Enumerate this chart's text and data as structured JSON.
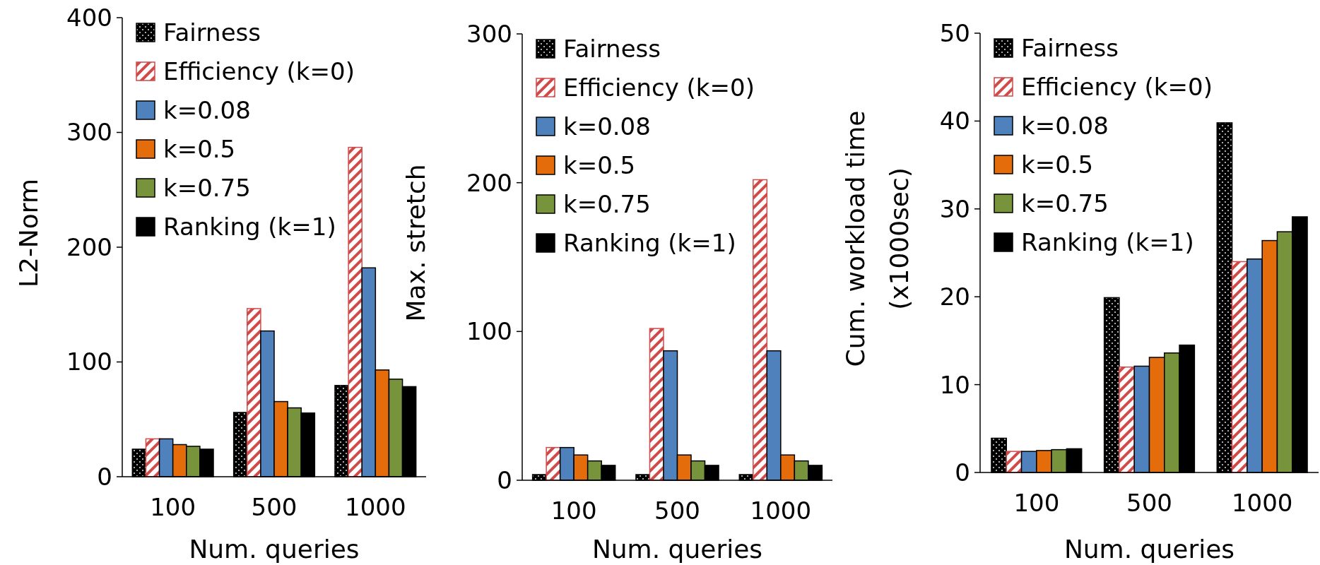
{
  "chart_data": [
    {
      "type": "bar",
      "xlabel": "Num.  queries",
      "ylabel": "L2-Norm",
      "categories": [
        "100",
        "500",
        "1000"
      ],
      "ylim": [
        0,
        400
      ],
      "yticks": [
        0,
        100,
        200,
        300,
        400
      ],
      "legend": "top left",
      "grid": false,
      "series": [
        {
          "name": "Fairness",
          "color": "#000000",
          "values": [
            24,
            56,
            79.5
          ]
        },
        {
          "name": "Efficiency (k=0)",
          "color": "#d04a4a",
          "values": [
            33,
            146.5,
            287
          ]
        },
        {
          "name": "k=0.08",
          "color": "#4f81bd",
          "values": [
            33,
            127,
            182
          ]
        },
        {
          "name": "k=0.5",
          "color": "#e46c0a",
          "values": [
            28,
            65.5,
            93
          ]
        },
        {
          "name": "k=0.75",
          "color": "#77933c",
          "values": [
            26.5,
            60,
            85
          ]
        },
        {
          "name": "Ranking (k=1)",
          "color": "#000000",
          "values": [
            24,
            55.5,
            78.5
          ]
        }
      ]
    },
    {
      "type": "bar",
      "xlabel": "Num. queries",
      "ylabel": "Max. stretch",
      "categories": [
        "100",
        "500",
        "1000"
      ],
      "ylim": [
        0,
        300
      ],
      "yticks": [
        0,
        100,
        200,
        300
      ],
      "legend": "top left",
      "grid": false,
      "series": [
        {
          "name": "Fairness",
          "color": "#000000",
          "values": [
            3.8,
            3.8,
            3.8
          ]
        },
        {
          "name": "Efficiency (k=0)",
          "color": "#d04a4a",
          "values": [
            22,
            102,
            202
          ]
        },
        {
          "name": "k=0.08",
          "color": "#4f81bd",
          "values": [
            22,
            87,
            87
          ]
        },
        {
          "name": "k=0.5",
          "color": "#e46c0a",
          "values": [
            17,
            17,
            17
          ]
        },
        {
          "name": "k=0.75",
          "color": "#77933c",
          "values": [
            13,
            13,
            13
          ]
        },
        {
          "name": "Ranking (k=1)",
          "color": "#000000",
          "values": [
            10,
            10,
            10
          ]
        }
      ]
    },
    {
      "type": "bar",
      "xlabel": "Num. queries",
      "ylabel": "Cum. workload time\n(x1000sec)",
      "categories": [
        "100",
        "500",
        "1000"
      ],
      "ylim": [
        0,
        50
      ],
      "yticks": [
        0,
        10,
        20,
        30,
        40,
        50
      ],
      "legend": "top left",
      "grid": false,
      "series": [
        {
          "name": "Fairness",
          "color": "#000000",
          "values": [
            3.9,
            19.9,
            39.8
          ]
        },
        {
          "name": "Efficiency (k=0)",
          "color": "#d04a4a",
          "values": [
            2.4,
            12.0,
            24.0
          ]
        },
        {
          "name": "k=0.08",
          "color": "#4f81bd",
          "values": [
            2.4,
            12.1,
            24.3
          ]
        },
        {
          "name": "k=0.5",
          "color": "#e46c0a",
          "values": [
            2.5,
            13.1,
            26.4
          ]
        },
        {
          "name": "k=0.75",
          "color": "#77933c",
          "values": [
            2.6,
            13.6,
            27.4
          ]
        },
        {
          "name": "Ranking (k=1)",
          "color": "#000000",
          "values": [
            2.7,
            14.5,
            29.1
          ]
        }
      ]
    }
  ]
}
